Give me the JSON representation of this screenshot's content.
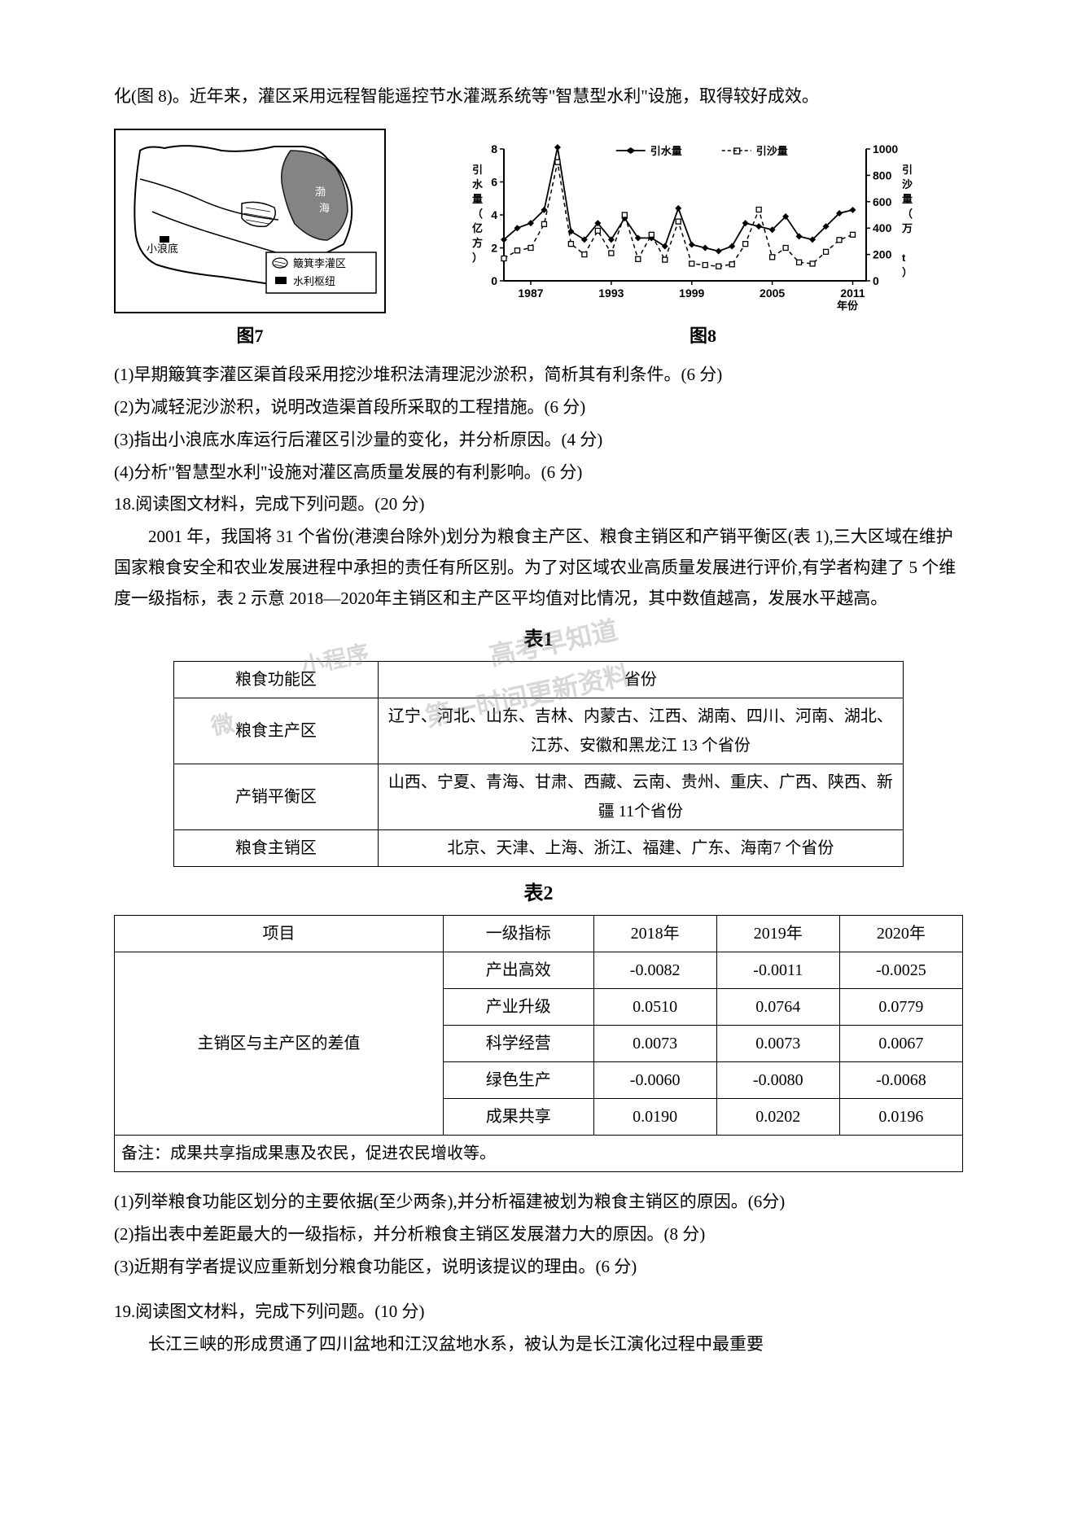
{
  "intro": {
    "p1": "化(图 8)。近年来，灌区采用远程智能遥控节水灌溉系统等\"智慧型水利\"设施，取得较好成效。"
  },
  "figures": {
    "fig7": {
      "caption": "图7",
      "map_labels": {
        "xiaolangdi": "小浪底",
        "legend1": "簸箕李灌区",
        "legend2": "水利枢纽",
        "bohai": "渤海"
      },
      "map_colors": {
        "outline": "#000000",
        "fill": "#ffffff",
        "water": "#888888"
      }
    },
    "fig8": {
      "caption": "图8",
      "x_axis_label": "年份",
      "y_left_label": "引水量（亿方）",
      "y_right_label": "引沙量（万 t）",
      "legend": {
        "water": "引水量",
        "sand": "引沙量"
      },
      "x_ticks": [
        "1987",
        "1993",
        "1999",
        "2005",
        "2011"
      ],
      "y_left_ticks": [
        0,
        2,
        4,
        6,
        8
      ],
      "y_right_ticks": [
        0,
        200,
        400,
        600,
        800,
        1000
      ],
      "x_range": [
        1985,
        2012
      ],
      "water_series": {
        "color": "#000000",
        "marker": "diamond",
        "line_style": "solid",
        "data": [
          {
            "x": 1985,
            "y": 2.5
          },
          {
            "x": 1986,
            "y": 3.2
          },
          {
            "x": 1987,
            "y": 3.5
          },
          {
            "x": 1988,
            "y": 4.3
          },
          {
            "x": 1989,
            "y": 8.1
          },
          {
            "x": 1990,
            "y": 3.0
          },
          {
            "x": 1991,
            "y": 2.5
          },
          {
            "x": 1992,
            "y": 3.5
          },
          {
            "x": 1993,
            "y": 2.5
          },
          {
            "x": 1994,
            "y": 3.8
          },
          {
            "x": 1995,
            "y": 2.6
          },
          {
            "x": 1996,
            "y": 2.6
          },
          {
            "x": 1997,
            "y": 2.1
          },
          {
            "x": 1998,
            "y": 4.4
          },
          {
            "x": 1999,
            "y": 2.2
          },
          {
            "x": 2000,
            "y": 2.0
          },
          {
            "x": 2001,
            "y": 1.8
          },
          {
            "x": 2002,
            "y": 2.1
          },
          {
            "x": 2003,
            "y": 3.5
          },
          {
            "x": 2004,
            "y": 3.3
          },
          {
            "x": 2005,
            "y": 3.1
          },
          {
            "x": 2006,
            "y": 3.9
          },
          {
            "x": 2007,
            "y": 2.7
          },
          {
            "x": 2008,
            "y": 2.5
          },
          {
            "x": 2009,
            "y": 3.3
          },
          {
            "x": 2010,
            "y": 4.1
          },
          {
            "x": 2011,
            "y": 4.3
          }
        ]
      },
      "sand_series": {
        "color": "#000000",
        "marker": "square",
        "line_style": "dashed",
        "data": [
          {
            "x": 1985,
            "y": 170
          },
          {
            "x": 1986,
            "y": 230
          },
          {
            "x": 1987,
            "y": 250
          },
          {
            "x": 1988,
            "y": 430
          },
          {
            "x": 1989,
            "y": 900
          },
          {
            "x": 1990,
            "y": 280
          },
          {
            "x": 1991,
            "y": 200
          },
          {
            "x": 1992,
            "y": 380
          },
          {
            "x": 1993,
            "y": 210
          },
          {
            "x": 1994,
            "y": 500
          },
          {
            "x": 1995,
            "y": 165
          },
          {
            "x": 1996,
            "y": 350
          },
          {
            "x": 1997,
            "y": 160
          },
          {
            "x": 1998,
            "y": 450
          },
          {
            "x": 1999,
            "y": 130
          },
          {
            "x": 2000,
            "y": 120
          },
          {
            "x": 2001,
            "y": 110
          },
          {
            "x": 2002,
            "y": 125
          },
          {
            "x": 2003,
            "y": 280
          },
          {
            "x": 2004,
            "y": 540
          },
          {
            "x": 2005,
            "y": 180
          },
          {
            "x": 2006,
            "y": 250
          },
          {
            "x": 2007,
            "y": 140
          },
          {
            "x": 2008,
            "y": 130
          },
          {
            "x": 2009,
            "y": 220
          },
          {
            "x": 2010,
            "y": 310
          },
          {
            "x": 2011,
            "y": 350
          }
        ]
      }
    }
  },
  "questions_set1": {
    "q1": "(1)早期簸箕李灌区渠首段采用挖沙堆积法清理泥沙淤积，简析其有利条件。(6 分)",
    "q2": "(2)为减轻泥沙淤积，说明改造渠首段所采取的工程措施。(6 分)",
    "q3": "(3)指出小浪底水库运行后灌区引沙量的变化，并分析原因。(4 分)",
    "q4": "(4)分析\"智慧型水利\"设施对灌区高质量发展的有利影响。(6 分)"
  },
  "q18": {
    "header": "18.阅读图文材料，完成下列问题。(20 分)",
    "p1": "2001 年，我国将 31 个省份(港澳台除外)划分为粮食主产区、粮食主销区和产销平衡区(表 1),三大区域在维护国家粮食安全和农业发展进程中承担的责任有所区别。为了对区域农业高质量发展进行评价,有学者构建了 5 个维度一级指标，表 2 示意 2018—2020年主销区和主产区平均值对比情况，其中数值越高，发展水平越高。"
  },
  "table1": {
    "title": "表1",
    "header": [
      "粮食功能区",
      "省份"
    ],
    "rows": [
      [
        "粮食主产区",
        "辽宁、河北、山东、吉林、内蒙古、江西、湖南、四川、河南、湖北、江苏、安徽和黑龙江 13 个省份"
      ],
      [
        "产销平衡区",
        "山西、宁夏、青海、甘肃、西藏、云南、贵州、重庆、广西、陕西、新疆 11个省份"
      ],
      [
        "粮食主销区",
        "北京、天津、上海、浙江、福建、广东、海南7 个省份"
      ]
    ],
    "watermarks": [
      "高考早知道",
      "小程序",
      "第一时间更新资料",
      "微"
    ]
  },
  "table2": {
    "title": "表2",
    "columns": [
      "项目",
      "一级指标",
      "2018年",
      "2019年",
      "2020年"
    ],
    "row_group_label": "主销区与主产区的差值",
    "rows": [
      [
        "产出高效",
        "-0.0082",
        "-0.0011",
        "-0.0025"
      ],
      [
        "产业升级",
        "0.0510",
        "0.0764",
        "0.0779"
      ],
      [
        "科学经营",
        "0.0073",
        "0.0073",
        "0.0067"
      ],
      [
        "绿色生产",
        "-0.0060",
        "-0.0080",
        "-0.0068"
      ],
      [
        "成果共享",
        "0.0190",
        "0.0202",
        "0.0196"
      ]
    ],
    "note": "备注：成果共享指成果惠及农民，促进农民增收等。"
  },
  "questions_set2": {
    "q1": "(1)列举粮食功能区划分的主要依据(至少两条),并分析福建被划为粮食主销区的原因。(6分)",
    "q2": "(2)指出表中差距最大的一级指标，并分析粮食主销区发展潜力大的原因。(8 分)",
    "q3": "(3)近期有学者提议应重新划分粮食功能区，说明该提议的理由。(6 分)"
  },
  "q19": {
    "header": "19.阅读图文材料，完成下列问题。(10 分)",
    "p1": "长江三峡的形成贯通了四川盆地和江汉盆地水系，被认为是长江演化过程中最重要"
  }
}
